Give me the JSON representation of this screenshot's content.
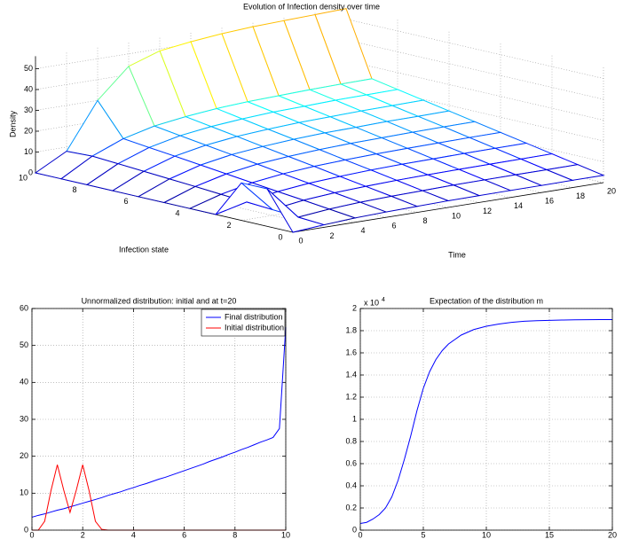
{
  "chart_data": [
    {
      "type": "surface",
      "title": "Evolution of Infection density over time",
      "xlabel": "Infection state",
      "ylabel": "Time",
      "zlabel": "Density",
      "x": [
        0,
        1,
        2,
        3,
        4,
        5,
        6,
        7,
        8,
        9,
        10
      ],
      "y": [
        0,
        2,
        4,
        6,
        8,
        10,
        12,
        14,
        16,
        18,
        20
      ],
      "z": [
        [
          0,
          18,
          18,
          0,
          0,
          0,
          0,
          0,
          0,
          0,
          0
        ],
        [
          1.2,
          2.0,
          2.8,
          3.6,
          4.4,
          5.3,
          6.1,
          6.9,
          7.7,
          8.5,
          8
        ],
        [
          2.1,
          3.5,
          4.9,
          6.2,
          7.6,
          9.0,
          10.4,
          11.8,
          13.1,
          14.5,
          30
        ],
        [
          2.6,
          4.4,
          6.1,
          7.8,
          9.5,
          11.3,
          13.0,
          14.7,
          16.4,
          18.2,
          44
        ],
        [
          2.9,
          4.9,
          6.8,
          8.7,
          10.7,
          12.6,
          14.5,
          16.5,
          18.4,
          20.3,
          49
        ],
        [
          3.2,
          5.2,
          7.3,
          9.4,
          11.4,
          13.5,
          15.6,
          17.6,
          19.7,
          21.8,
          51
        ],
        [
          3.3,
          5.5,
          7.6,
          9.8,
          11.9,
          14.1,
          16.3,
          18.4,
          20.6,
          22.7,
          52.5
        ],
        [
          3.4,
          5.6,
          7.8,
          10.0,
          12.2,
          14.4,
          16.6,
          18.8,
          21.0,
          23.2,
          53.5
        ],
        [
          3.4,
          5.7,
          7.9,
          10.2,
          12.4,
          14.7,
          17.0,
          19.2,
          21.5,
          23.7,
          54
        ],
        [
          3.5,
          5.7,
          8.0,
          10.3,
          12.6,
          14.9,
          17.1,
          19.4,
          21.7,
          24.0,
          54.5
        ],
        [
          3.5,
          5.8,
          8.1,
          10.4,
          12.7,
          15.0,
          17.3,
          19.6,
          21.9,
          24.2,
          55
        ]
      ],
      "xlim": [
        0,
        10
      ],
      "ylim": [
        0,
        20
      ],
      "zlim": [
        0,
        56
      ],
      "xticks": [
        0,
        2,
        4,
        6,
        8,
        10
      ],
      "yticks": [
        0,
        2,
        4,
        6,
        8,
        10,
        12,
        14,
        16,
        18,
        20
      ],
      "zticks": [
        0,
        10,
        20,
        30,
        40,
        50
      ],
      "grid": true,
      "colormap": "jet"
    },
    {
      "type": "line",
      "title": "Unnormalized distribution: initial and at t=20",
      "x": [
        0,
        0.25,
        0.5,
        0.75,
        1,
        1.25,
        1.5,
        1.75,
        2,
        2.25,
        2.5,
        2.75,
        3,
        3.25,
        3.5,
        3.75,
        4,
        4.25,
        4.5,
        4.75,
        5,
        5.25,
        5.5,
        5.75,
        6,
        6.25,
        6.5,
        6.75,
        7,
        7.25,
        7.5,
        7.75,
        8,
        8.25,
        8.5,
        8.75,
        9,
        9.25,
        9.5,
        9.75,
        10
      ],
      "series": [
        {
          "name": "Final distribution",
          "color": "#0000ff",
          "values": [
            3.5,
            4.0,
            4.4,
            4.9,
            5.4,
            5.8,
            6.3,
            6.8,
            7.3,
            7.8,
            8.3,
            8.8,
            9.4,
            9.9,
            10.4,
            11.0,
            11.5,
            12.1,
            12.6,
            13.2,
            13.8,
            14.3,
            14.9,
            15.5,
            16.1,
            16.7,
            17.3,
            17.9,
            18.6,
            19.2,
            19.8,
            20.5,
            21.1,
            21.8,
            22.4,
            23.1,
            23.8,
            24.4,
            25.1,
            27.5,
            55
          ]
        },
        {
          "name": "Initial distribution",
          "color": "#ff0000",
          "values": [
            0,
            0,
            2.4,
            10.7,
            17.7,
            10.9,
            4.8,
            10.9,
            17.7,
            10.7,
            2.4,
            0.2,
            0,
            0,
            0,
            0,
            0,
            0,
            0,
            0,
            0,
            0,
            0,
            0,
            0,
            0,
            0,
            0,
            0,
            0,
            0,
            0,
            0,
            0,
            0,
            0,
            0,
            0,
            0,
            0,
            0
          ]
        }
      ],
      "xlim": [
        0,
        10
      ],
      "ylim": [
        0,
        60
      ],
      "xticks": [
        0,
        2,
        4,
        6,
        8,
        10
      ],
      "yticks": [
        0,
        10,
        20,
        30,
        40,
        50,
        60
      ],
      "grid": true,
      "legend": "northeast"
    },
    {
      "type": "line",
      "title": "Expectation of the distribution m",
      "y_multiplier": "x 10",
      "y_exponent": "4",
      "x": [
        0,
        0.5,
        1,
        1.5,
        2,
        2.5,
        3,
        3.5,
        4,
        4.5,
        5,
        5.5,
        6,
        6.5,
        7,
        7.5,
        8,
        9,
        10,
        11,
        12,
        13,
        14,
        15,
        16,
        17,
        18,
        19,
        20
      ],
      "values": [
        0.06,
        0.07,
        0.1,
        0.14,
        0.2,
        0.3,
        0.45,
        0.64,
        0.85,
        1.08,
        1.28,
        1.43,
        1.54,
        1.62,
        1.68,
        1.72,
        1.76,
        1.81,
        1.84,
        1.86,
        1.875,
        1.885,
        1.89,
        1.893,
        1.896,
        1.898,
        1.899,
        1.9,
        1.9
      ],
      "color": "#0000ff",
      "xlim": [
        0,
        20
      ],
      "ylim": [
        0,
        2
      ],
      "xticks": [
        0,
        5,
        10,
        15,
        20
      ],
      "yticks": [
        0,
        0.2,
        0.4,
        0.6,
        0.8,
        1,
        1.2,
        1.4,
        1.6,
        1.8,
        2
      ],
      "grid": true
    }
  ]
}
